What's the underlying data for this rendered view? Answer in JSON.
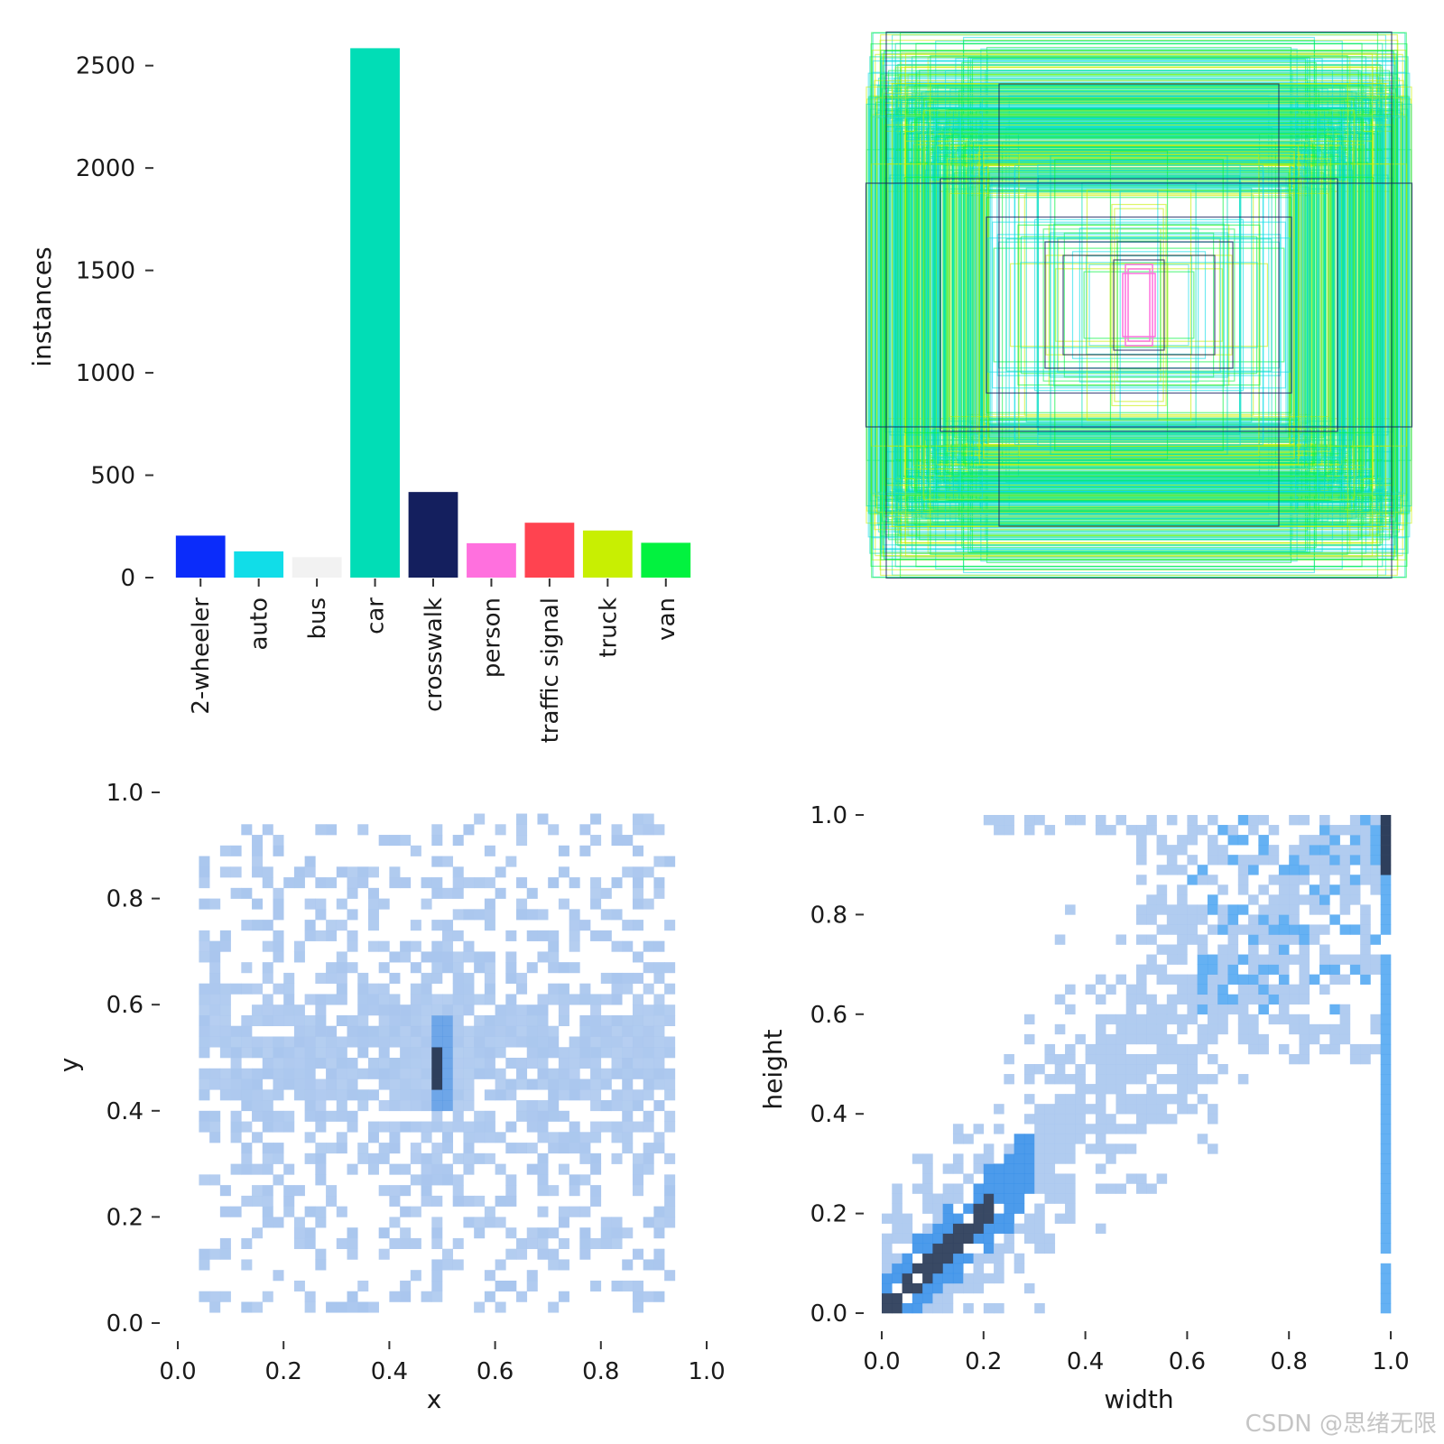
{
  "watermark": "CSDN @思绪无限",
  "chart_data": [
    {
      "id": "instances",
      "type": "bar",
      "title": "",
      "xlabel": "",
      "ylabel": "instances",
      "ylim": [
        0,
        2600
      ],
      "yticks": [
        0,
        500,
        1000,
        1500,
        2000,
        2500
      ],
      "categories": [
        "2-wheeler",
        "auto",
        "bus",
        "car",
        "crosswalk",
        "person",
        "traffic signal",
        "truck",
        "van"
      ],
      "values": [
        205,
        128,
        100,
        2585,
        418,
        168,
        268,
        230,
        170
      ],
      "colors": [
        "#0b2cfa",
        "#11dde8",
        "#f2f2f2",
        "#01ddb6",
        "#141f5e",
        "#ff70de",
        "#ff4350",
        "#c8ef02",
        "#02f23f"
      ]
    },
    {
      "id": "boxes",
      "type": "box-overlay",
      "title": "",
      "description_colors": [
        "#11dde8",
        "#01ddb6",
        "#c8ef02",
        "#02f23f",
        "#ff70de",
        "#141f5e"
      ]
    },
    {
      "id": "xy",
      "type": "heatmap",
      "xlabel": "x",
      "ylabel": "y",
      "xlim": [
        0,
        1
      ],
      "ylim": [
        0,
        1
      ],
      "xticks": [
        "0.0",
        "0.2",
        "0.4",
        "0.6",
        "0.8",
        "1.0"
      ],
      "yticks": [
        "0.0",
        "0.2",
        "0.4",
        "0.6",
        "0.8",
        "1.0"
      ],
      "color": "#a9c6ee",
      "peak": {
        "x": 0.495,
        "y": 0.49,
        "color": "#2e3f5c"
      }
    },
    {
      "id": "wh",
      "type": "heatmap",
      "xlabel": "width",
      "ylabel": "height",
      "xlim": [
        0,
        1
      ],
      "ylim": [
        0,
        1
      ],
      "xticks": [
        "0.0",
        "0.2",
        "0.4",
        "0.6",
        "0.8",
        "1.0"
      ],
      "yticks": [
        "0.0",
        "0.2",
        "0.4",
        "0.6",
        "0.8",
        "1.0"
      ],
      "color": "#a9c6ee",
      "peak_color": "#2e3f5c"
    }
  ]
}
